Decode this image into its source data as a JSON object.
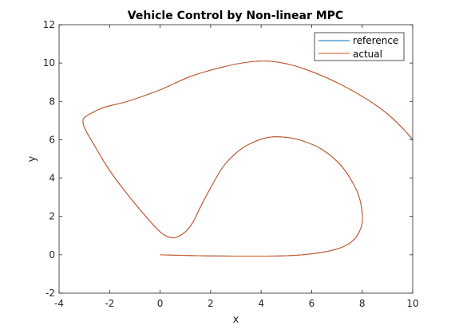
{
  "chart_data": {
    "type": "line",
    "title": "Vehicle Control by Non-linear MPC",
    "xlabel": "x",
    "ylabel": "y",
    "xlim": [
      -4,
      10
    ],
    "ylim": [
      -2,
      12
    ],
    "xticks": [
      -4,
      -2,
      0,
      2,
      4,
      6,
      8,
      10
    ],
    "yticks": [
      -2,
      0,
      2,
      4,
      6,
      8,
      10,
      12
    ],
    "grid": false,
    "legend_position": "top-right",
    "series": [
      {
        "name": "reference",
        "color": "#0072BD",
        "x": [
          0,
          1,
          2,
          3,
          4,
          5,
          6,
          7,
          7.6,
          7.95,
          8.0,
          7.8,
          7.2,
          6.4,
          5.5,
          4.8,
          4.2,
          3.5,
          3.0,
          2.5,
          2.0,
          1.6,
          1.3,
          1.0,
          0.6,
          0.3,
          0.0,
          -0.5,
          -1.2,
          -2.0,
          -2.6,
          -2.95,
          -3.05,
          -3.0,
          -2.7,
          -2.2,
          -1.3,
          0.0,
          1.2,
          2.5,
          3.5,
          4.3,
          5.2,
          6.2,
          7.2,
          8.2,
          9.0,
          9.6,
          10.0
        ],
        "y": [
          0.0,
          -0.03,
          -0.06,
          -0.07,
          -0.07,
          -0.05,
          0.05,
          0.3,
          0.7,
          1.4,
          2.2,
          3.3,
          4.6,
          5.5,
          6.0,
          6.15,
          6.1,
          5.75,
          5.3,
          4.6,
          3.5,
          2.5,
          1.7,
          1.2,
          0.9,
          0.95,
          1.2,
          1.9,
          3.0,
          4.4,
          5.7,
          6.5,
          6.9,
          7.15,
          7.4,
          7.7,
          8.0,
          8.6,
          9.3,
          9.8,
          10.05,
          10.1,
          9.9,
          9.45,
          8.85,
          8.1,
          7.35,
          6.6,
          6.0
        ]
      },
      {
        "name": "actual",
        "color": "#D95319",
        "x": [
          0,
          1,
          2,
          3,
          4,
          5,
          6,
          7,
          7.6,
          7.95,
          8.0,
          7.8,
          7.2,
          6.4,
          5.5,
          4.8,
          4.2,
          3.5,
          3.0,
          2.5,
          2.0,
          1.6,
          1.3,
          1.0,
          0.6,
          0.3,
          0.0,
          -0.5,
          -1.2,
          -2.0,
          -2.6,
          -2.95,
          -3.05,
          -3.0,
          -2.7,
          -2.2,
          -1.3,
          0.0,
          1.2,
          2.5,
          3.5,
          4.3,
          5.2,
          6.2,
          7.2,
          8.2,
          9.0,
          9.6,
          9.95
        ],
        "y": [
          0.0,
          -0.03,
          -0.06,
          -0.07,
          -0.07,
          -0.05,
          0.05,
          0.3,
          0.7,
          1.4,
          2.2,
          3.3,
          4.6,
          5.5,
          6.0,
          6.15,
          6.1,
          5.75,
          5.3,
          4.6,
          3.5,
          2.5,
          1.7,
          1.2,
          0.9,
          0.95,
          1.2,
          1.9,
          3.0,
          4.4,
          5.7,
          6.5,
          6.9,
          7.15,
          7.4,
          7.7,
          8.0,
          8.6,
          9.3,
          9.8,
          10.05,
          10.1,
          9.9,
          9.45,
          8.85,
          8.1,
          7.35,
          6.6,
          6.1
        ]
      }
    ]
  }
}
